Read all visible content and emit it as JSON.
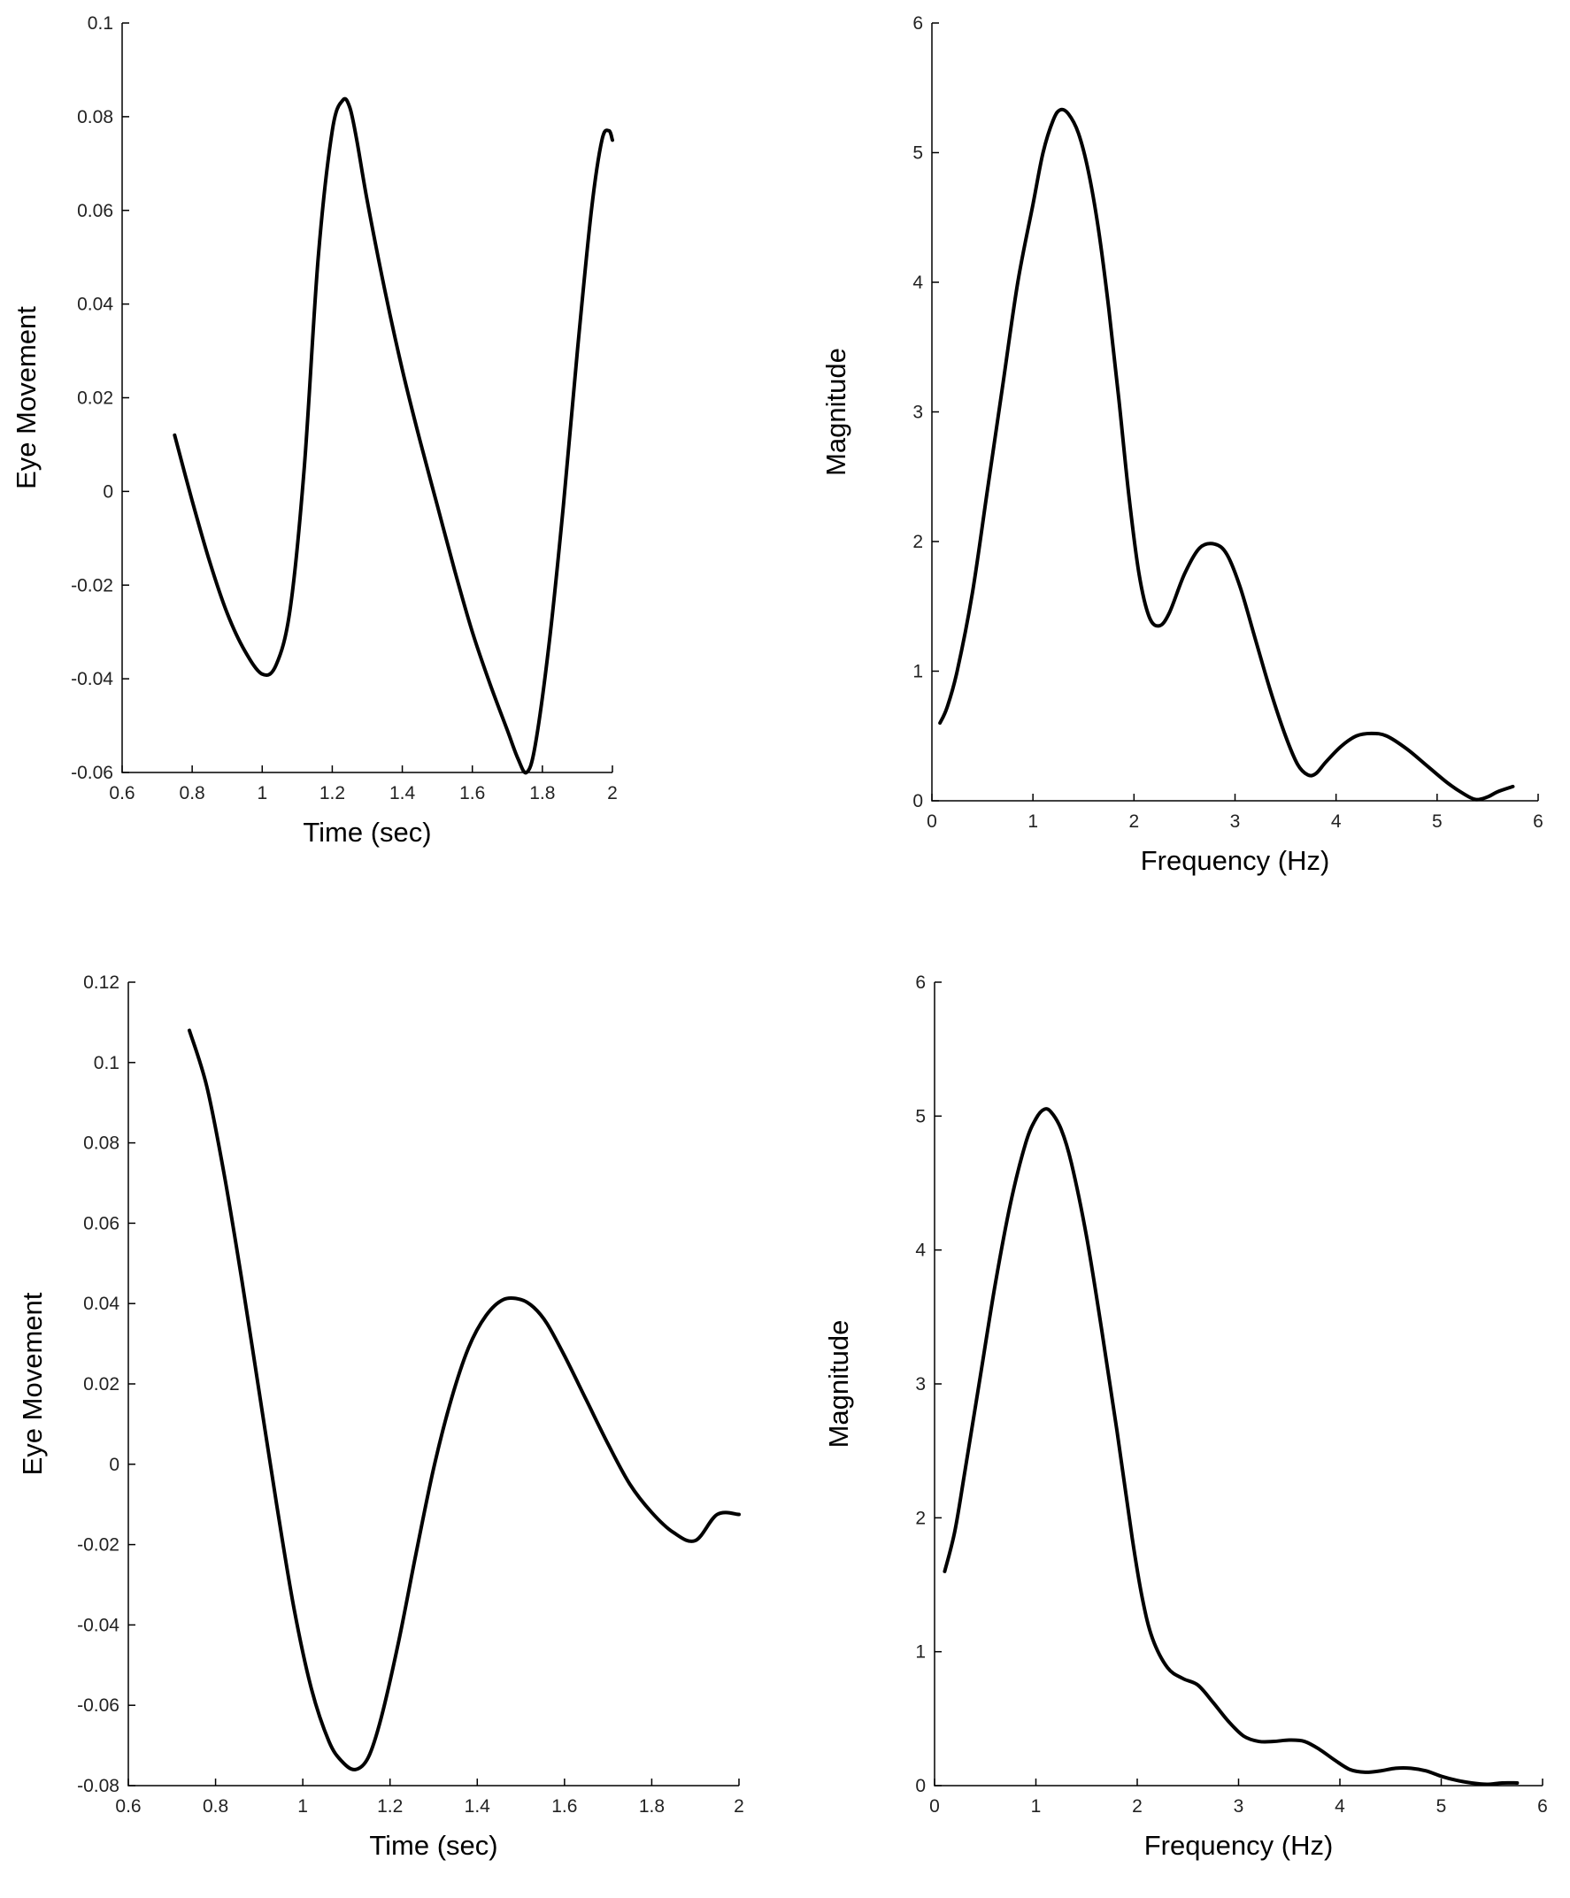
{
  "chart_data": [
    {
      "type": "line",
      "id": "top-left",
      "title": "",
      "xlabel": "Time (sec)",
      "ylabel": "Eye Movement",
      "xlim": [
        0.6,
        2
      ],
      "ylim": [
        -0.06,
        0.1
      ],
      "xticks": [
        0.6,
        0.8,
        1,
        1.2,
        1.4,
        1.6,
        1.8,
        2
      ],
      "xtick_labels": [
        "0.6",
        "0.8",
        "1",
        "1.2",
        "1.4",
        "1.6",
        "1.8",
        "2"
      ],
      "yticks": [
        -0.06,
        -0.04,
        -0.02,
        0,
        0.02,
        0.04,
        0.06,
        0.08,
        0.1
      ],
      "ytick_labels": [
        "-0.06",
        "-0.04",
        "-0.02",
        "0",
        "0.02",
        "0.04",
        "0.06",
        "0.08",
        "0.1"
      ],
      "grid": false,
      "series": [
        {
          "name": "eye-movement",
          "x": [
            0.75,
            0.8,
            0.85,
            0.9,
            0.95,
            1.0,
            1.04,
            1.08,
            1.12,
            1.16,
            1.2,
            1.23,
            1.25,
            1.27,
            1.3,
            1.35,
            1.4,
            1.45,
            1.5,
            1.55,
            1.6,
            1.65,
            1.7,
            1.73,
            1.755,
            1.78,
            1.82,
            1.86,
            1.9,
            1.94,
            1.97,
            1.99,
            2.0
          ],
          "y": [
            0.012,
            -0.002,
            -0.015,
            -0.026,
            -0.034,
            -0.039,
            -0.037,
            -0.025,
            0.005,
            0.05,
            0.077,
            0.0835,
            0.082,
            0.075,
            0.062,
            0.043,
            0.026,
            0.011,
            -0.003,
            -0.017,
            -0.03,
            -0.041,
            -0.051,
            -0.057,
            -0.06,
            -0.054,
            -0.032,
            -0.003,
            0.03,
            0.06,
            0.075,
            0.077,
            0.075
          ]
        }
      ]
    },
    {
      "type": "line",
      "id": "top-right",
      "title": "",
      "xlabel": "Frequency (Hz)",
      "ylabel": "Magnitude",
      "xlim": [
        0,
        6
      ],
      "ylim": [
        0,
        6
      ],
      "xticks": [
        0,
        1,
        2,
        3,
        4,
        5,
        6
      ],
      "xtick_labels": [
        "0",
        "1",
        "2",
        "3",
        "4",
        "5",
        "6"
      ],
      "yticks": [
        0,
        1,
        2,
        3,
        4,
        5,
        6
      ],
      "ytick_labels": [
        "0",
        "1",
        "2",
        "3",
        "4",
        "5",
        "6"
      ],
      "grid": false,
      "series": [
        {
          "name": "magnitude",
          "x": [
            0.08,
            0.15,
            0.25,
            0.4,
            0.55,
            0.7,
            0.85,
            1.0,
            1.1,
            1.2,
            1.27,
            1.35,
            1.45,
            1.55,
            1.65,
            1.75,
            1.85,
            1.95,
            2.05,
            2.15,
            2.25,
            2.35,
            2.5,
            2.65,
            2.8,
            2.92,
            3.05,
            3.2,
            3.35,
            3.5,
            3.62,
            3.72,
            3.8,
            3.9,
            4.05,
            4.2,
            4.35,
            4.5,
            4.7,
            4.9,
            5.1,
            5.25,
            5.38,
            5.5,
            5.6,
            5.75
          ],
          "y": [
            0.6,
            0.72,
            1.0,
            1.6,
            2.4,
            3.2,
            4.0,
            4.6,
            5.0,
            5.25,
            5.33,
            5.3,
            5.15,
            4.85,
            4.4,
            3.8,
            3.1,
            2.35,
            1.75,
            1.42,
            1.35,
            1.45,
            1.75,
            1.95,
            1.98,
            1.9,
            1.65,
            1.25,
            0.85,
            0.5,
            0.28,
            0.2,
            0.21,
            0.3,
            0.42,
            0.5,
            0.52,
            0.5,
            0.4,
            0.27,
            0.14,
            0.06,
            0.01,
            0.03,
            0.07,
            0.11
          ]
        }
      ]
    },
    {
      "type": "line",
      "id": "bottom-left",
      "title": "",
      "xlabel": "Time (sec)",
      "ylabel": "Eye Movement",
      "xlim": [
        0.6,
        2
      ],
      "ylim": [
        -0.08,
        0.12
      ],
      "xticks": [
        0.6,
        0.8,
        1,
        1.2,
        1.4,
        1.6,
        1.8,
        2
      ],
      "xtick_labels": [
        "0.6",
        "0.8",
        "1",
        "1.2",
        "1.4",
        "1.6",
        "1.8",
        "2"
      ],
      "yticks": [
        -0.08,
        -0.06,
        -0.04,
        -0.02,
        0,
        0.02,
        0.04,
        0.06,
        0.08,
        0.1,
        0.12
      ],
      "ytick_labels": [
        "-0.08",
        "-0.06",
        "-0.04",
        "-0.02",
        "0",
        "0.02",
        "0.04",
        "0.06",
        "0.08",
        "0.1",
        "0.12"
      ],
      "grid": false,
      "series": [
        {
          "name": "eye-movement",
          "x": [
            0.74,
            0.78,
            0.82,
            0.86,
            0.9,
            0.94,
            0.98,
            1.02,
            1.06,
            1.09,
            1.12,
            1.15,
            1.18,
            1.22,
            1.26,
            1.3,
            1.34,
            1.38,
            1.42,
            1.46,
            1.5,
            1.53,
            1.56,
            1.6,
            1.65,
            1.7,
            1.75,
            1.8,
            1.85,
            1.9,
            1.95,
            2.0
          ],
          "y": [
            0.108,
            0.094,
            0.072,
            0.046,
            0.018,
            -0.01,
            -0.036,
            -0.056,
            -0.069,
            -0.074,
            -0.076,
            -0.073,
            -0.063,
            -0.044,
            -0.022,
            -0.001,
            0.016,
            0.029,
            0.037,
            0.041,
            0.041,
            0.039,
            0.035,
            0.027,
            0.016,
            0.005,
            -0.005,
            -0.012,
            -0.017,
            -0.019,
            -0.0125,
            -0.0125
          ]
        }
      ]
    },
    {
      "type": "line",
      "id": "bottom-right",
      "title": "",
      "xlabel": "Frequency (Hz)",
      "ylabel": "Magnitude",
      "xlim": [
        0,
        6
      ],
      "ylim": [
        0,
        6
      ],
      "xticks": [
        0,
        1,
        2,
        3,
        4,
        5,
        6
      ],
      "xtick_labels": [
        "0",
        "1",
        "2",
        "3",
        "4",
        "5",
        "6"
      ],
      "yticks": [
        0,
        1,
        2,
        3,
        4,
        5,
        6
      ],
      "ytick_labels": [
        "0",
        "1",
        "2",
        "3",
        "4",
        "5",
        "6"
      ],
      "grid": false,
      "series": [
        {
          "name": "magnitude",
          "x": [
            0.1,
            0.2,
            0.3,
            0.45,
            0.6,
            0.75,
            0.9,
            1.0,
            1.08,
            1.15,
            1.25,
            1.35,
            1.5,
            1.65,
            1.8,
            1.95,
            2.05,
            2.15,
            2.3,
            2.45,
            2.6,
            2.75,
            2.9,
            3.05,
            3.2,
            3.35,
            3.5,
            3.65,
            3.8,
            3.95,
            4.1,
            4.25,
            4.4,
            4.55,
            4.7,
            4.85,
            5.0,
            5.15,
            5.3,
            5.45,
            5.6,
            5.75
          ],
          "y": [
            1.6,
            1.9,
            2.35,
            3.05,
            3.75,
            4.35,
            4.8,
            4.98,
            5.05,
            5.03,
            4.9,
            4.65,
            4.1,
            3.4,
            2.65,
            1.85,
            1.4,
            1.1,
            0.88,
            0.8,
            0.75,
            0.62,
            0.48,
            0.37,
            0.33,
            0.33,
            0.34,
            0.33,
            0.27,
            0.19,
            0.12,
            0.1,
            0.11,
            0.13,
            0.13,
            0.11,
            0.07,
            0.04,
            0.02,
            0.01,
            0.02,
            0.02
          ]
        }
      ]
    }
  ]
}
